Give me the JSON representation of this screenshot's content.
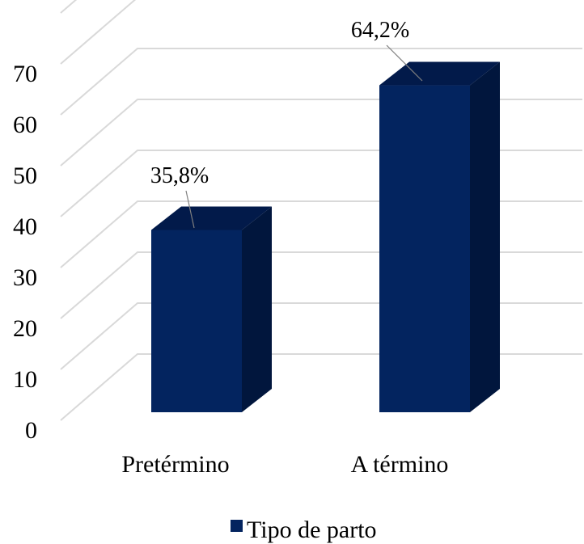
{
  "chart_data": {
    "type": "bar",
    "title": "",
    "xlabel": "",
    "ylabel": "",
    "categories": [
      "Pretérmino",
      "A término"
    ],
    "series": [
      {
        "name": "Tipo de parto",
        "values": [
          35.8,
          64.2
        ],
        "data_labels": [
          "35,8%",
          "64,2%"
        ]
      }
    ],
    "ylim": [
      0,
      70
    ],
    "yticks": [
      "0",
      "10",
      "20",
      "30",
      "40",
      "50",
      "60",
      "70"
    ],
    "grid": true,
    "three_d": true,
    "legend_position": "bottom",
    "colors": {
      "bar_front": "#03245F",
      "bar_top": "#021A4A",
      "bar_side": "#01163D",
      "grid": "#D9D9D9"
    }
  }
}
